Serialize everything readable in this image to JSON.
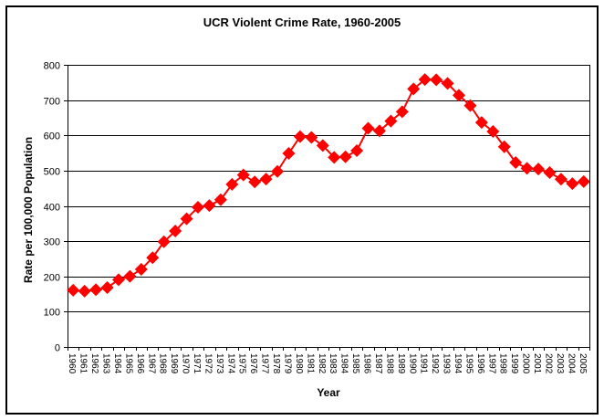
{
  "chart_data": {
    "type": "line",
    "title": "UCR Violent Crime Rate, 1960-2005",
    "xlabel": "Year",
    "ylabel": "Rate per 100,000 Population",
    "ylim": [
      0,
      800
    ],
    "yticks": [
      0,
      100,
      200,
      300,
      400,
      500,
      600,
      700,
      800
    ],
    "grid": true,
    "legend": null,
    "marker": "diamond",
    "color": "#FF0000",
    "categories": [
      "1960",
      "1961",
      "1962",
      "1963",
      "1964",
      "1965",
      "1966",
      "1967",
      "1968",
      "1969",
      "1970",
      "1971",
      "1972",
      "1973",
      "1974",
      "1975",
      "1976",
      "1977",
      "1978",
      "1979",
      "1980",
      "1981",
      "1982",
      "1983",
      "1984",
      "1985",
      "1986",
      "1987",
      "1988",
      "1989",
      "1990",
      "1991",
      "1992",
      "1993",
      "1994",
      "1995",
      "1996",
      "1997",
      "1998",
      "1999",
      "2000",
      "2001",
      "2002",
      "2003",
      "2004",
      "2005"
    ],
    "series": [
      {
        "name": "Violent Crime Rate",
        "values": [
          160.9,
          158.1,
          162.3,
          168.2,
          190.6,
          200.2,
          220.0,
          253.2,
          298.4,
          328.7,
          363.5,
          396.0,
          401.0,
          417.4,
          461.1,
          487.8,
          467.8,
          475.9,
          497.8,
          548.9,
          596.6,
          594.3,
          571.1,
          537.7,
          539.2,
          556.6,
          620.1,
          612.5,
          640.6,
          666.9,
          731.8,
          758.2,
          757.7,
          747.1,
          713.6,
          684.5,
          636.6,
          611.0,
          567.6,
          523.0,
          506.5,
          504.5,
          494.4,
          475.8,
          463.2,
          469.0
        ]
      }
    ]
  }
}
